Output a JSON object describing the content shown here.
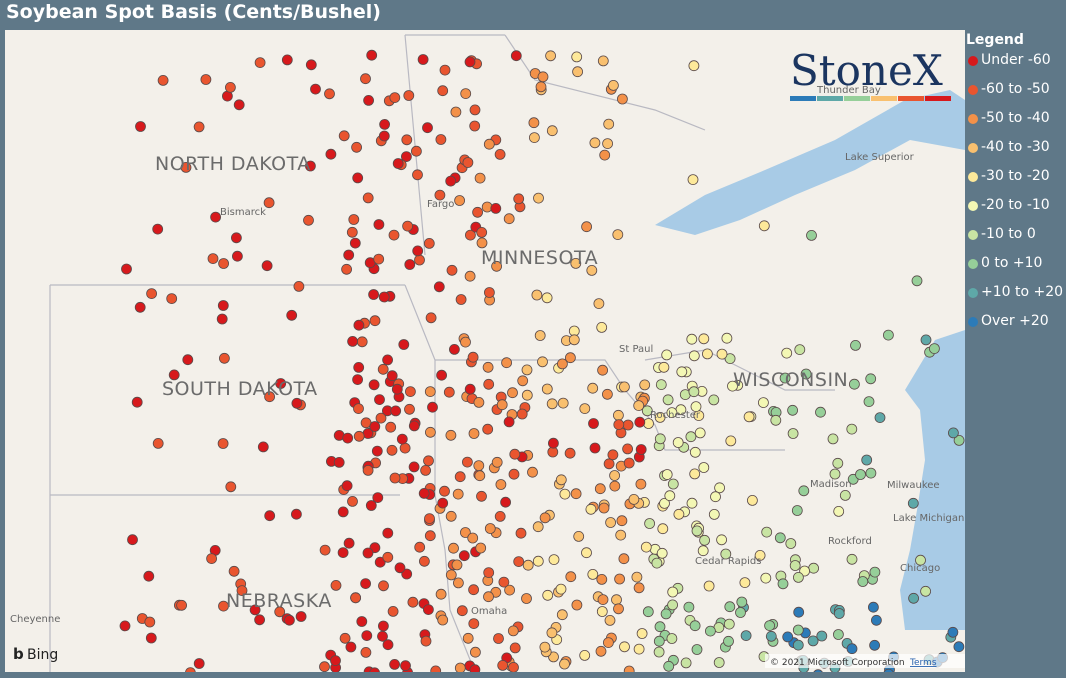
{
  "header": {
    "title": "Soybean Spot Basis (Cents/Bushel)"
  },
  "legend": {
    "title": "Legend",
    "items": [
      {
        "label": "Under -60",
        "color": "#d7191c"
      },
      {
        "label": "-60 to -50",
        "color": "#e9552f"
      },
      {
        "label": "-50 to -40",
        "color": "#f39149"
      },
      {
        "label": "-40 to -30",
        "color": "#f9c06f"
      },
      {
        "label": "-30 to -20",
        "color": "#fde99a"
      },
      {
        "label": "-20 to -10",
        "color": "#f3f7b4"
      },
      {
        "label": "-10 to 0",
        "color": "#c8e4a3"
      },
      {
        "label": "0 to +10",
        "color": "#96cf99"
      },
      {
        "label": "+10 to +20",
        "color": "#5ea8a8"
      },
      {
        "label": "Over +20",
        "color": "#2c7bb8"
      }
    ]
  },
  "map": {
    "states": [
      "NORTH DAKOTA",
      "MINNESOTA",
      "SOUTH DAKOTA",
      "WISCONSIN",
      "NEBRASKA"
    ],
    "places": [
      "Bismarck",
      "Fargo",
      "St Paul",
      "Rochester",
      "Madison",
      "Milwaukee",
      "Lake Michigan",
      "Lake Superior",
      "Thunder Bay",
      "Cedar Rapids",
      "Rockford",
      "Chicago",
      "Omaha",
      "Cheyenne"
    ],
    "provider": "Bing",
    "copyright": "© 2021 Microsoft Corporation",
    "terms": "Terms"
  },
  "logo": {
    "text": "StoneX"
  }
}
